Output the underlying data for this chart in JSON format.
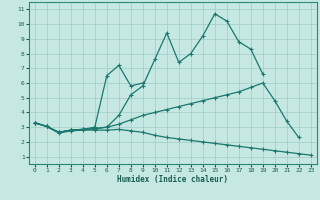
{
  "xlabel": "Humidex (Indice chaleur)",
  "background_color": "#c5e8e2",
  "grid_color": "#9fccc4",
  "line_color": "#1a7870",
  "spine_color": "#2a8878",
  "tick_color": "#1a5c54",
  "xlim": [
    -0.5,
    23.5
  ],
  "ylim": [
    0.5,
    11.5
  ],
  "xticks": [
    0,
    1,
    2,
    3,
    4,
    5,
    6,
    7,
    8,
    9,
    10,
    11,
    12,
    13,
    14,
    15,
    16,
    17,
    18,
    19,
    20,
    21,
    22,
    23
  ],
  "yticks": [
    1,
    2,
    3,
    4,
    5,
    6,
    7,
    8,
    9,
    10,
    11
  ],
  "line1_x": [
    0,
    1,
    2,
    3,
    4,
    5,
    6,
    7,
    8,
    9,
    10,
    11,
    12,
    13,
    14,
    15,
    16,
    17,
    18,
    19,
    20,
    21,
    22,
    23
  ],
  "line1_y": [
    3.3,
    3.05,
    2.6,
    2.75,
    2.8,
    2.8,
    2.8,
    2.85,
    2.75,
    2.65,
    2.45,
    2.3,
    2.2,
    2.1,
    2.0,
    1.9,
    1.8,
    1.7,
    1.6,
    1.5,
    1.4,
    1.3,
    1.2,
    1.1
  ],
  "line2_x": [
    0,
    1,
    2,
    3,
    4,
    5,
    6,
    7,
    8,
    9,
    10,
    11,
    12,
    13,
    14,
    15,
    16,
    17,
    18,
    19,
    20,
    21,
    22
  ],
  "line2_y": [
    3.3,
    3.05,
    2.65,
    2.8,
    2.85,
    2.9,
    3.0,
    3.2,
    3.5,
    3.8,
    4.0,
    4.2,
    4.4,
    4.6,
    4.8,
    5.0,
    5.2,
    5.4,
    5.7,
    6.0,
    4.8,
    3.4,
    2.3
  ],
  "line3_x": [
    0,
    1,
    2,
    3,
    4,
    5,
    6,
    7,
    8,
    9,
    10,
    11,
    12,
    13,
    14,
    15,
    16,
    17,
    18,
    19
  ],
  "line3_y": [
    3.3,
    3.05,
    2.65,
    2.8,
    2.85,
    2.9,
    3.0,
    3.8,
    5.2,
    5.8,
    7.6,
    9.4,
    7.4,
    8.0,
    9.2,
    10.7,
    10.2,
    8.8,
    8.3,
    6.6
  ],
  "line4_x": [
    0,
    1,
    2,
    3,
    4,
    5,
    6,
    7,
    8,
    9
  ],
  "line4_y": [
    3.3,
    3.05,
    2.65,
    2.8,
    2.85,
    3.0,
    6.5,
    7.2,
    5.8,
    6.0
  ]
}
